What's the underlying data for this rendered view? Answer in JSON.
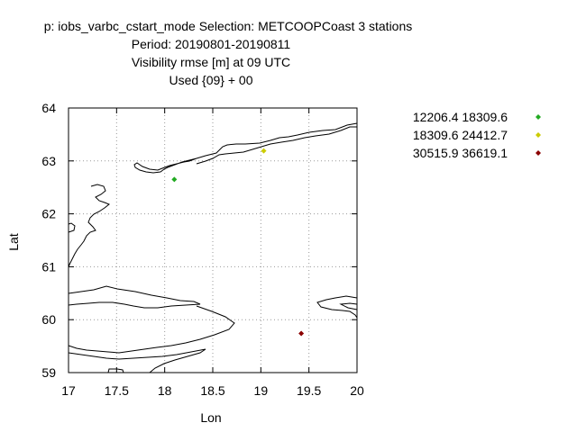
{
  "chart_data": {
    "type": "scatter",
    "title_lines": [
      "p: iobs_varbc_cstart_mode   Selection: METCOOPCoast      3 stations",
      "Period: 20190801-20190811",
      "Visibility rmse [m] at  09 UTC",
      "Used {09} + 00"
    ],
    "xlabel": "Lon",
    "ylabel": "Lat",
    "xlim": [
      17,
      20
    ],
    "ylim": [
      59,
      64
    ],
    "xticks": [
      "17",
      "17.5",
      "18",
      "18.5",
      "19",
      "19.5",
      "20"
    ],
    "yticks": [
      "59",
      "60",
      "61",
      "62",
      "63",
      "64"
    ],
    "grid": true,
    "legend_position": "right, outside plot",
    "series": [
      {
        "name": "12206.4 18309.6",
        "color": "#22aa22",
        "points": [
          {
            "x": 18.1,
            "y": 62.65
          }
        ]
      },
      {
        "name": "18309.6 24412.7",
        "color": "#cccc00",
        "points": [
          {
            "x": 19.03,
            "y": 63.19
          }
        ]
      },
      {
        "name": "30515.9 36619.1",
        "color": "#8b0000",
        "points": [
          {
            "x": 19.42,
            "y": 59.74
          }
        ]
      }
    ]
  }
}
